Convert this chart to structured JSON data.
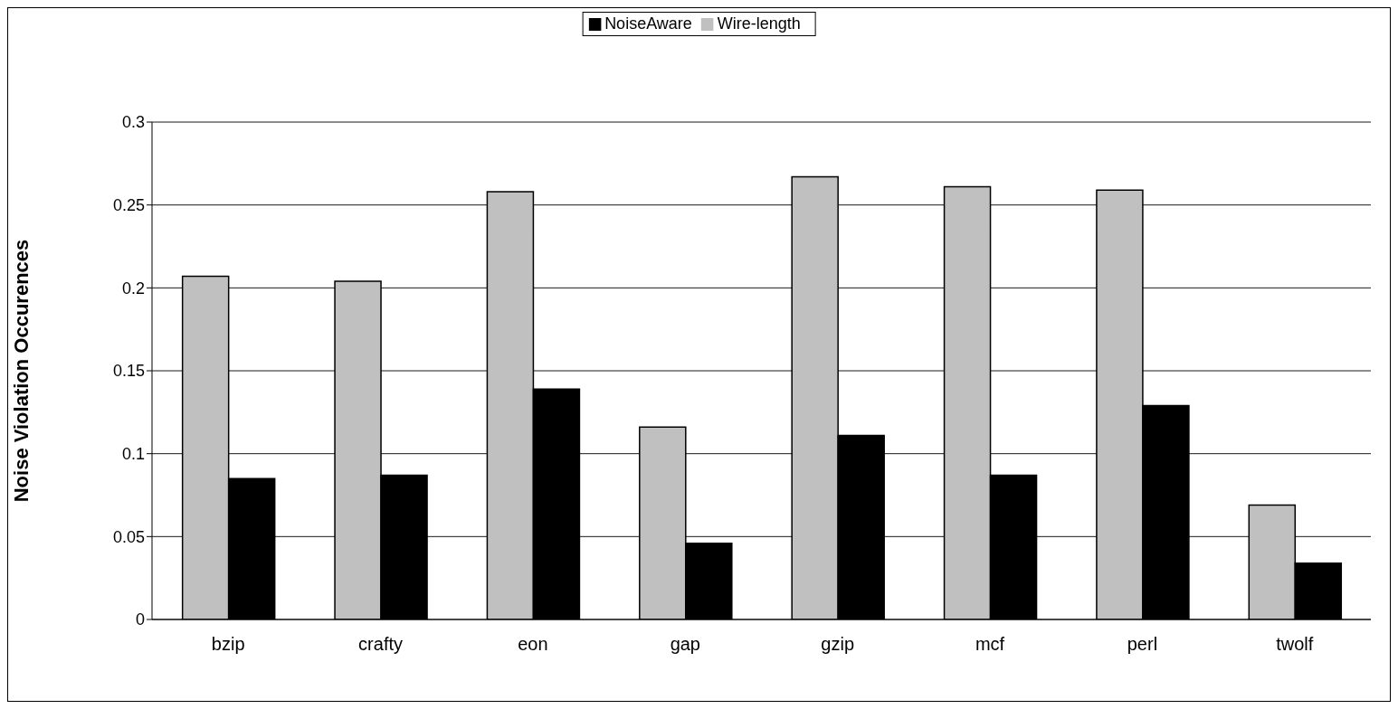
{
  "chart_data": {
    "type": "bar",
    "ylabel": "Noise Violation Occurences",
    "categories": [
      "bzip",
      "crafty",
      "eon",
      "gap",
      "gzip",
      "mcf",
      "perl",
      "twolf"
    ],
    "series": [
      {
        "name": "Wire-length",
        "color": "#c0c0c0",
        "values": [
          0.207,
          0.204,
          0.258,
          0.116,
          0.267,
          0.261,
          0.259,
          0.069
        ]
      },
      {
        "name": "NoiseAware",
        "color": "#000000",
        "values": [
          0.085,
          0.087,
          0.139,
          0.046,
          0.111,
          0.087,
          0.129,
          0.034
        ]
      }
    ],
    "ylim": [
      0,
      0.3
    ],
    "yticks": [
      0,
      0.05,
      0.1,
      0.15,
      0.2,
      0.25,
      0.3
    ],
    "grid": "y",
    "legend": "top"
  }
}
